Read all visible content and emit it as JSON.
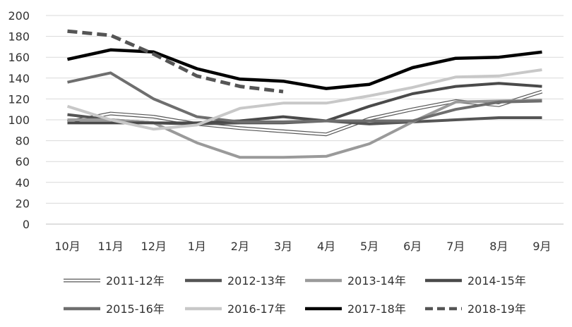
{
  "chart_data": {
    "type": "line",
    "title": "",
    "xlabel": "",
    "ylabel": "",
    "ylim": [
      0,
      200
    ],
    "yticks": [
      0,
      20,
      40,
      60,
      80,
      100,
      120,
      140,
      160,
      180,
      200
    ],
    "grid": true,
    "legend_position": "bottom",
    "categories": [
      "10月",
      "11月",
      "12月",
      "1月",
      "2月",
      "3月",
      "4月",
      "5月",
      "6月",
      "7月",
      "8月",
      "9月"
    ],
    "series": [
      {
        "name": "2011-12年",
        "color": "#ffffff",
        "outline": "#555555",
        "style": "hollow",
        "values": [
          98,
          106,
          103,
          96,
          92,
          89,
          86,
          101,
          110,
          118,
          114,
          127
        ]
      },
      {
        "name": "2012-13年",
        "color": "#555555",
        "style": "solid",
        "values": [
          105,
          100,
          97,
          96,
          97,
          97,
          99,
          96,
          98,
          100,
          102,
          102
        ]
      },
      {
        "name": "2013-14年",
        "color": "#9a9a9a",
        "style": "solid",
        "values": [
          100,
          100,
          97,
          78,
          64,
          64,
          65,
          77,
          98,
          117,
          118,
          119
        ]
      },
      {
        "name": "2014-15年",
        "color": "#4a4a4a",
        "style": "solid",
        "values": [
          97,
          97,
          97,
          97,
          99,
          103,
          99,
          113,
          125,
          132,
          135,
          132
        ]
      },
      {
        "name": "2015-16年",
        "color": "#6e6e6e",
        "style": "solid",
        "values": [
          136,
          145,
          120,
          103,
          98,
          98,
          99,
          99,
          99,
          110,
          117,
          118
        ]
      },
      {
        "name": "2016-17年",
        "color": "#c8c8c8",
        "style": "solid",
        "values": [
          113,
          100,
          91,
          95,
          111,
          116,
          116,
          123,
          131,
          141,
          142,
          148
        ]
      },
      {
        "name": "2017-18年",
        "color": "#000000",
        "style": "solid",
        "values": [
          158,
          167,
          165,
          149,
          139,
          137,
          130,
          134,
          150,
          159,
          160,
          165
        ]
      },
      {
        "name": "2018-19年",
        "color": "#555555",
        "style": "dashed",
        "values": [
          185,
          181,
          163,
          142,
          132,
          127,
          null,
          null,
          null,
          null,
          null,
          null
        ]
      }
    ]
  }
}
